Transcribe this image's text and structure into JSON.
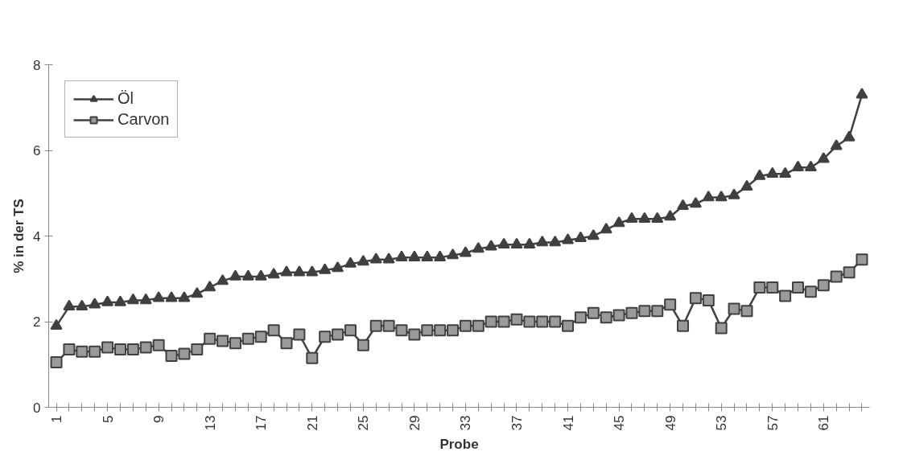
{
  "chart_data": {
    "type": "line",
    "xlabel": "Probe",
    "ylabel": "% in der TS",
    "categories": [
      "1",
      null,
      null,
      null,
      "5",
      null,
      null,
      null,
      "9",
      null,
      null,
      null,
      "13",
      null,
      null,
      null,
      "17",
      null,
      null,
      null,
      "21",
      null,
      null,
      null,
      "25",
      null,
      null,
      null,
      "29",
      null,
      null,
      null,
      "33",
      null,
      null,
      null,
      "37",
      null,
      null,
      null,
      "41",
      null,
      null,
      null,
      "45",
      null,
      null,
      null,
      "49",
      null,
      null,
      null,
      "53",
      null,
      null,
      null,
      "57",
      null,
      null,
      null,
      "61",
      null,
      null,
      null
    ],
    "series": [
      {
        "name": "Öl",
        "color": "#404040",
        "marker": "triangle",
        "values": [
          1.9,
          2.35,
          2.35,
          2.4,
          2.45,
          2.45,
          2.5,
          2.5,
          2.55,
          2.55,
          2.55,
          2.65,
          2.8,
          2.95,
          3.05,
          3.05,
          3.05,
          3.1,
          3.15,
          3.15,
          3.15,
          3.2,
          3.25,
          3.35,
          3.4,
          3.45,
          3.45,
          3.5,
          3.5,
          3.5,
          3.5,
          3.55,
          3.6,
          3.7,
          3.75,
          3.8,
          3.8,
          3.8,
          3.85,
          3.85,
          3.9,
          3.95,
          4.0,
          4.15,
          4.3,
          4.4,
          4.4,
          4.4,
          4.45,
          4.7,
          4.75,
          4.9,
          4.9,
          4.95,
          5.15,
          5.4,
          5.45,
          5.45,
          5.6,
          5.6,
          5.8,
          6.1,
          6.3,
          7.3
        ]
      },
      {
        "name": "Carvon",
        "color": "#404040",
        "marker": "square",
        "values": [
          1.05,
          1.35,
          1.3,
          1.3,
          1.4,
          1.35,
          1.35,
          1.4,
          1.45,
          1.2,
          1.25,
          1.35,
          1.6,
          1.55,
          1.5,
          1.6,
          1.65,
          1.8,
          1.5,
          1.7,
          1.15,
          1.65,
          1.7,
          1.8,
          1.45,
          1.9,
          1.9,
          1.8,
          1.7,
          1.8,
          1.8,
          1.8,
          1.9,
          1.9,
          2.0,
          2.0,
          2.05,
          2.0,
          2.0,
          2.0,
          1.9,
          2.1,
          2.2,
          2.1,
          2.15,
          2.2,
          2.25,
          2.25,
          2.4,
          1.9,
          2.55,
          2.5,
          1.85,
          2.3,
          2.25,
          2.8,
          2.8,
          2.6,
          2.8,
          2.7,
          2.85,
          3.05,
          3.15,
          3.45
        ]
      }
    ],
    "ylim": [
      0,
      8
    ],
    "yticks": [
      0,
      2,
      4,
      6,
      8
    ],
    "grid": false,
    "legend": "top left",
    "line_style": "solid"
  }
}
